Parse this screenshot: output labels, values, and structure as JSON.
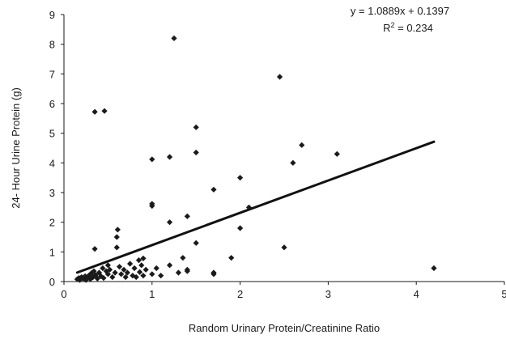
{
  "chart_data": {
    "type": "scatter",
    "xlabel": "Random Urinary Protein/Creatinine Ratio",
    "ylabel": "24- Hour Urine Protein (g)",
    "xlim": [
      0,
      5
    ],
    "ylim": [
      0,
      9
    ],
    "x_ticks": [
      "0",
      "1",
      "2",
      "3",
      "4",
      "5"
    ],
    "y_ticks": [
      "0",
      "1",
      "2",
      "3",
      "4",
      "5",
      "6",
      "7",
      "8",
      "9"
    ],
    "grid": false,
    "marker_color": "#1a1a1a",
    "annotation": {
      "equation": "y = 1.0889x + 0.1397",
      "r2_prefix": "R",
      "r2_sup": "2",
      "r2_suffix": " = 0.234"
    },
    "trendline": {
      "slope": 1.0889,
      "intercept": 0.1397,
      "x_range": [
        0.15,
        4.2
      ]
    },
    "points": [
      [
        0.15,
        0.08
      ],
      [
        0.17,
        0.12
      ],
      [
        0.18,
        0.05
      ],
      [
        0.2,
        0.15
      ],
      [
        0.22,
        0.1
      ],
      [
        0.24,
        0.18
      ],
      [
        0.25,
        0.05
      ],
      [
        0.27,
        0.12
      ],
      [
        0.28,
        0.2
      ],
      [
        0.3,
        0.08
      ],
      [
        0.31,
        0.28
      ],
      [
        0.33,
        0.15
      ],
      [
        0.34,
        0.35
      ],
      [
        0.35,
        1.1
      ],
      [
        0.35,
        5.72
      ],
      [
        0.36,
        0.22
      ],
      [
        0.38,
        0.1
      ],
      [
        0.4,
        0.3
      ],
      [
        0.42,
        0.18
      ],
      [
        0.44,
        0.45
      ],
      [
        0.45,
        0.12
      ],
      [
        0.46,
        5.75
      ],
      [
        0.48,
        0.35
      ],
      [
        0.5,
        0.25
      ],
      [
        0.5,
        0.55
      ],
      [
        0.52,
        0.4
      ],
      [
        0.55,
        0.15
      ],
      [
        0.58,
        0.3
      ],
      [
        0.6,
        1.15
      ],
      [
        0.6,
        1.5
      ],
      [
        0.61,
        1.75
      ],
      [
        0.63,
        0.5
      ],
      [
        0.65,
        0.25
      ],
      [
        0.68,
        0.4
      ],
      [
        0.7,
        0.15
      ],
      [
        0.72,
        0.3
      ],
      [
        0.75,
        0.6
      ],
      [
        0.78,
        0.2
      ],
      [
        0.8,
        0.45
      ],
      [
        0.82,
        0.15
      ],
      [
        0.85,
        0.72
      ],
      [
        0.86,
        0.32
      ],
      [
        0.88,
        0.55
      ],
      [
        0.9,
        0.78
      ],
      [
        0.9,
        0.2
      ],
      [
        0.93,
        0.4
      ],
      [
        1.0,
        4.12
      ],
      [
        1.0,
        2.55
      ],
      [
        1.0,
        2.62
      ],
      [
        1.0,
        0.25
      ],
      [
        1.05,
        0.45
      ],
      [
        1.1,
        0.2
      ],
      [
        1.2,
        4.2
      ],
      [
        1.2,
        2.0
      ],
      [
        1.2,
        0.55
      ],
      [
        1.25,
        8.2
      ],
      [
        1.3,
        0.3
      ],
      [
        1.35,
        0.8
      ],
      [
        1.4,
        2.2
      ],
      [
        1.4,
        0.4
      ],
      [
        1.4,
        0.35
      ],
      [
        1.5,
        5.2
      ],
      [
        1.5,
        4.35
      ],
      [
        1.5,
        1.3
      ],
      [
        1.7,
        3.1
      ],
      [
        1.7,
        0.3
      ],
      [
        1.7,
        0.25
      ],
      [
        1.9,
        0.8
      ],
      [
        2.0,
        3.5
      ],
      [
        2.0,
        1.8
      ],
      [
        2.1,
        2.5
      ],
      [
        2.45,
        6.9
      ],
      [
        2.5,
        1.15
      ],
      [
        2.6,
        4.0
      ],
      [
        2.7,
        4.6
      ],
      [
        3.1,
        4.3
      ],
      [
        4.2,
        0.45
      ]
    ]
  }
}
